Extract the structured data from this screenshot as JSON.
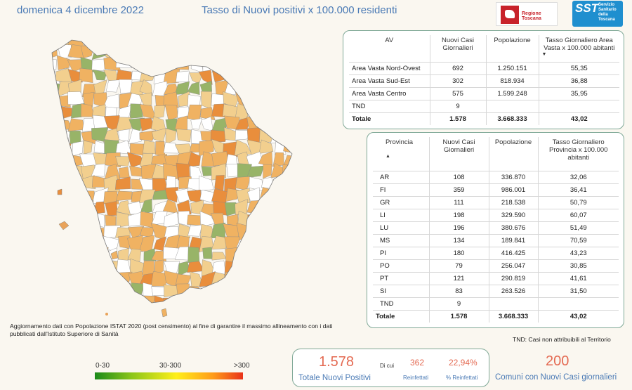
{
  "header": {
    "date": "domenica 4 dicembre 2022",
    "title": "Tasso di Nuovi positivi x 100.000 residenti"
  },
  "logos": {
    "regione": "Regione Toscana",
    "sst_big": "SST",
    "sst_small_1": "Servizio",
    "sst_small_2": "Sanitario",
    "sst_small_3": "della",
    "sst_small_4": "Toscana"
  },
  "av_table": {
    "headers": {
      "av": "AV",
      "casi": "Nuovi Casi Giornalieri",
      "pop": "Popolazione",
      "tasso": "Tasso Giornaliero Area Vasta x 100.000 abitanti"
    },
    "sort_indicator": "▼",
    "rows": [
      {
        "name": "Area Vasta Nord-Ovest",
        "casi": "692",
        "pop": "1.250.151",
        "tasso": "55,35"
      },
      {
        "name": "Area Vasta Sud-Est",
        "casi": "302",
        "pop": "818.934",
        "tasso": "36,88"
      },
      {
        "name": "Area Vasta Centro",
        "casi": "575",
        "pop": "1.599.248",
        "tasso": "35,95"
      },
      {
        "name": "TND",
        "casi": "9",
        "pop": "",
        "tasso": ""
      }
    ],
    "total": {
      "name": "Totale",
      "casi": "1.578",
      "pop": "3.668.333",
      "tasso": "43,02"
    }
  },
  "prov_table": {
    "headers": {
      "prov": "Provincia",
      "casi": "Nuovi Casi Giornalieri",
      "pop": "Popolazione",
      "tasso": "Tasso Giornaliero Provincia x 100.000 abitanti"
    },
    "sort_indicator": "▲",
    "rows": [
      {
        "name": "AR",
        "casi": "108",
        "pop": "336.870",
        "tasso": "32,06"
      },
      {
        "name": "FI",
        "casi": "359",
        "pop": "986.001",
        "tasso": "36,41"
      },
      {
        "name": "GR",
        "casi": "111",
        "pop": "218.538",
        "tasso": "50,79"
      },
      {
        "name": "LI",
        "casi": "198",
        "pop": "329.590",
        "tasso": "60,07"
      },
      {
        "name": "LU",
        "casi": "196",
        "pop": "380.676",
        "tasso": "51,49"
      },
      {
        "name": "MS",
        "casi": "134",
        "pop": "189.841",
        "tasso": "70,59"
      },
      {
        "name": "PI",
        "casi": "180",
        "pop": "416.425",
        "tasso": "43,23"
      },
      {
        "name": "PO",
        "casi": "79",
        "pop": "256.047",
        "tasso": "30,85"
      },
      {
        "name": "PT",
        "casi": "121",
        "pop": "290.819",
        "tasso": "41,61"
      },
      {
        "name": "SI",
        "casi": "83",
        "pop": "263.526",
        "tasso": "31,50"
      },
      {
        "name": "TND",
        "casi": "9",
        "pop": "",
        "tasso": ""
      }
    ],
    "total": {
      "name": "Totale",
      "casi": "1.578",
      "pop": "3.668.333",
      "tasso": "43,02"
    }
  },
  "notes": {
    "update": "Aggiornamento dati con Popolazione ISTAT 2020 (post censimento) al fine di garantire il massimo allineamento con i dati pubblicati dall'Istituto Superiore di Sanità",
    "tnd": "TND:  Casi non attribuibili al Territorio"
  },
  "legend": {
    "low": "0-30",
    "mid": "30-300",
    "high": ">300"
  },
  "kpi": {
    "total_value": "1.578",
    "total_label": "Totale Nuovi Positivi",
    "di_cui": "Di cui",
    "reinfettati_value": "362",
    "reinfettati_label": "Reinfettati",
    "perc_value": "22,94%",
    "perc_label": "% Reinfettati",
    "comuni_value": "200",
    "comuni_label": "Comuni con Nuovi Casi giornalieri"
  },
  "colors": {
    "accent_text": "#4a7ab5",
    "kpi_value": "#e46a52",
    "card_border": "#7fa896",
    "map_low": "#98b468",
    "map_mid_light": "#f2cf8e",
    "map_mid": "#f0b262",
    "map_high": "#e98e3c",
    "map_none": "#ffffff"
  }
}
